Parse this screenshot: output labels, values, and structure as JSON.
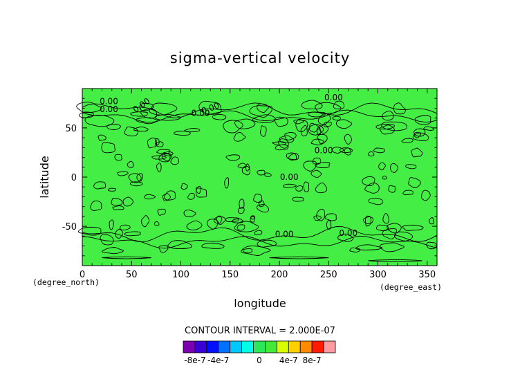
{
  "chart_data": {
    "type": "heatmap",
    "title": "sigma-vertical velocity",
    "xlabel": "longitude",
    "ylabel": "latitude",
    "x_unit_label": "(degree_east)",
    "y_unit_label": "(degree_north)",
    "xlim": [
      0,
      360
    ],
    "ylim": [
      -90,
      90
    ],
    "x_ticks": [
      "0",
      "50",
      "100",
      "150",
      "200",
      "250",
      "300",
      "350"
    ],
    "y_ticks": [
      "50",
      "0",
      "-50"
    ],
    "contour_interval_text": "CONTOUR INTERVAL = 2.000E-07",
    "contour_labels": [
      "0.00",
      "0.00",
      "0.00",
      "0.00",
      "0.00",
      "0.00",
      "0.00",
      "0.00",
      "0.00",
      "0.00"
    ],
    "colorbar": {
      "colors": [
        "#7a00b0",
        "#3a00d8",
        "#0010ff",
        "#0070ff",
        "#00c8ff",
        "#00ffe6",
        "#2ee65a",
        "#44e838",
        "#d8ff00",
        "#ffd000",
        "#ff8a00",
        "#ff1a00",
        "#ff9aa0"
      ],
      "tick_labels": [
        "-8e-7",
        "-4e-7",
        "0",
        "4e-7",
        "8e-7"
      ],
      "tick_values": [
        -8e-07,
        -4e-07,
        0,
        4e-07,
        8e-07
      ]
    },
    "field_colors": {
      "background_level": "#44ee44",
      "zero_level": "#39e83c"
    }
  }
}
